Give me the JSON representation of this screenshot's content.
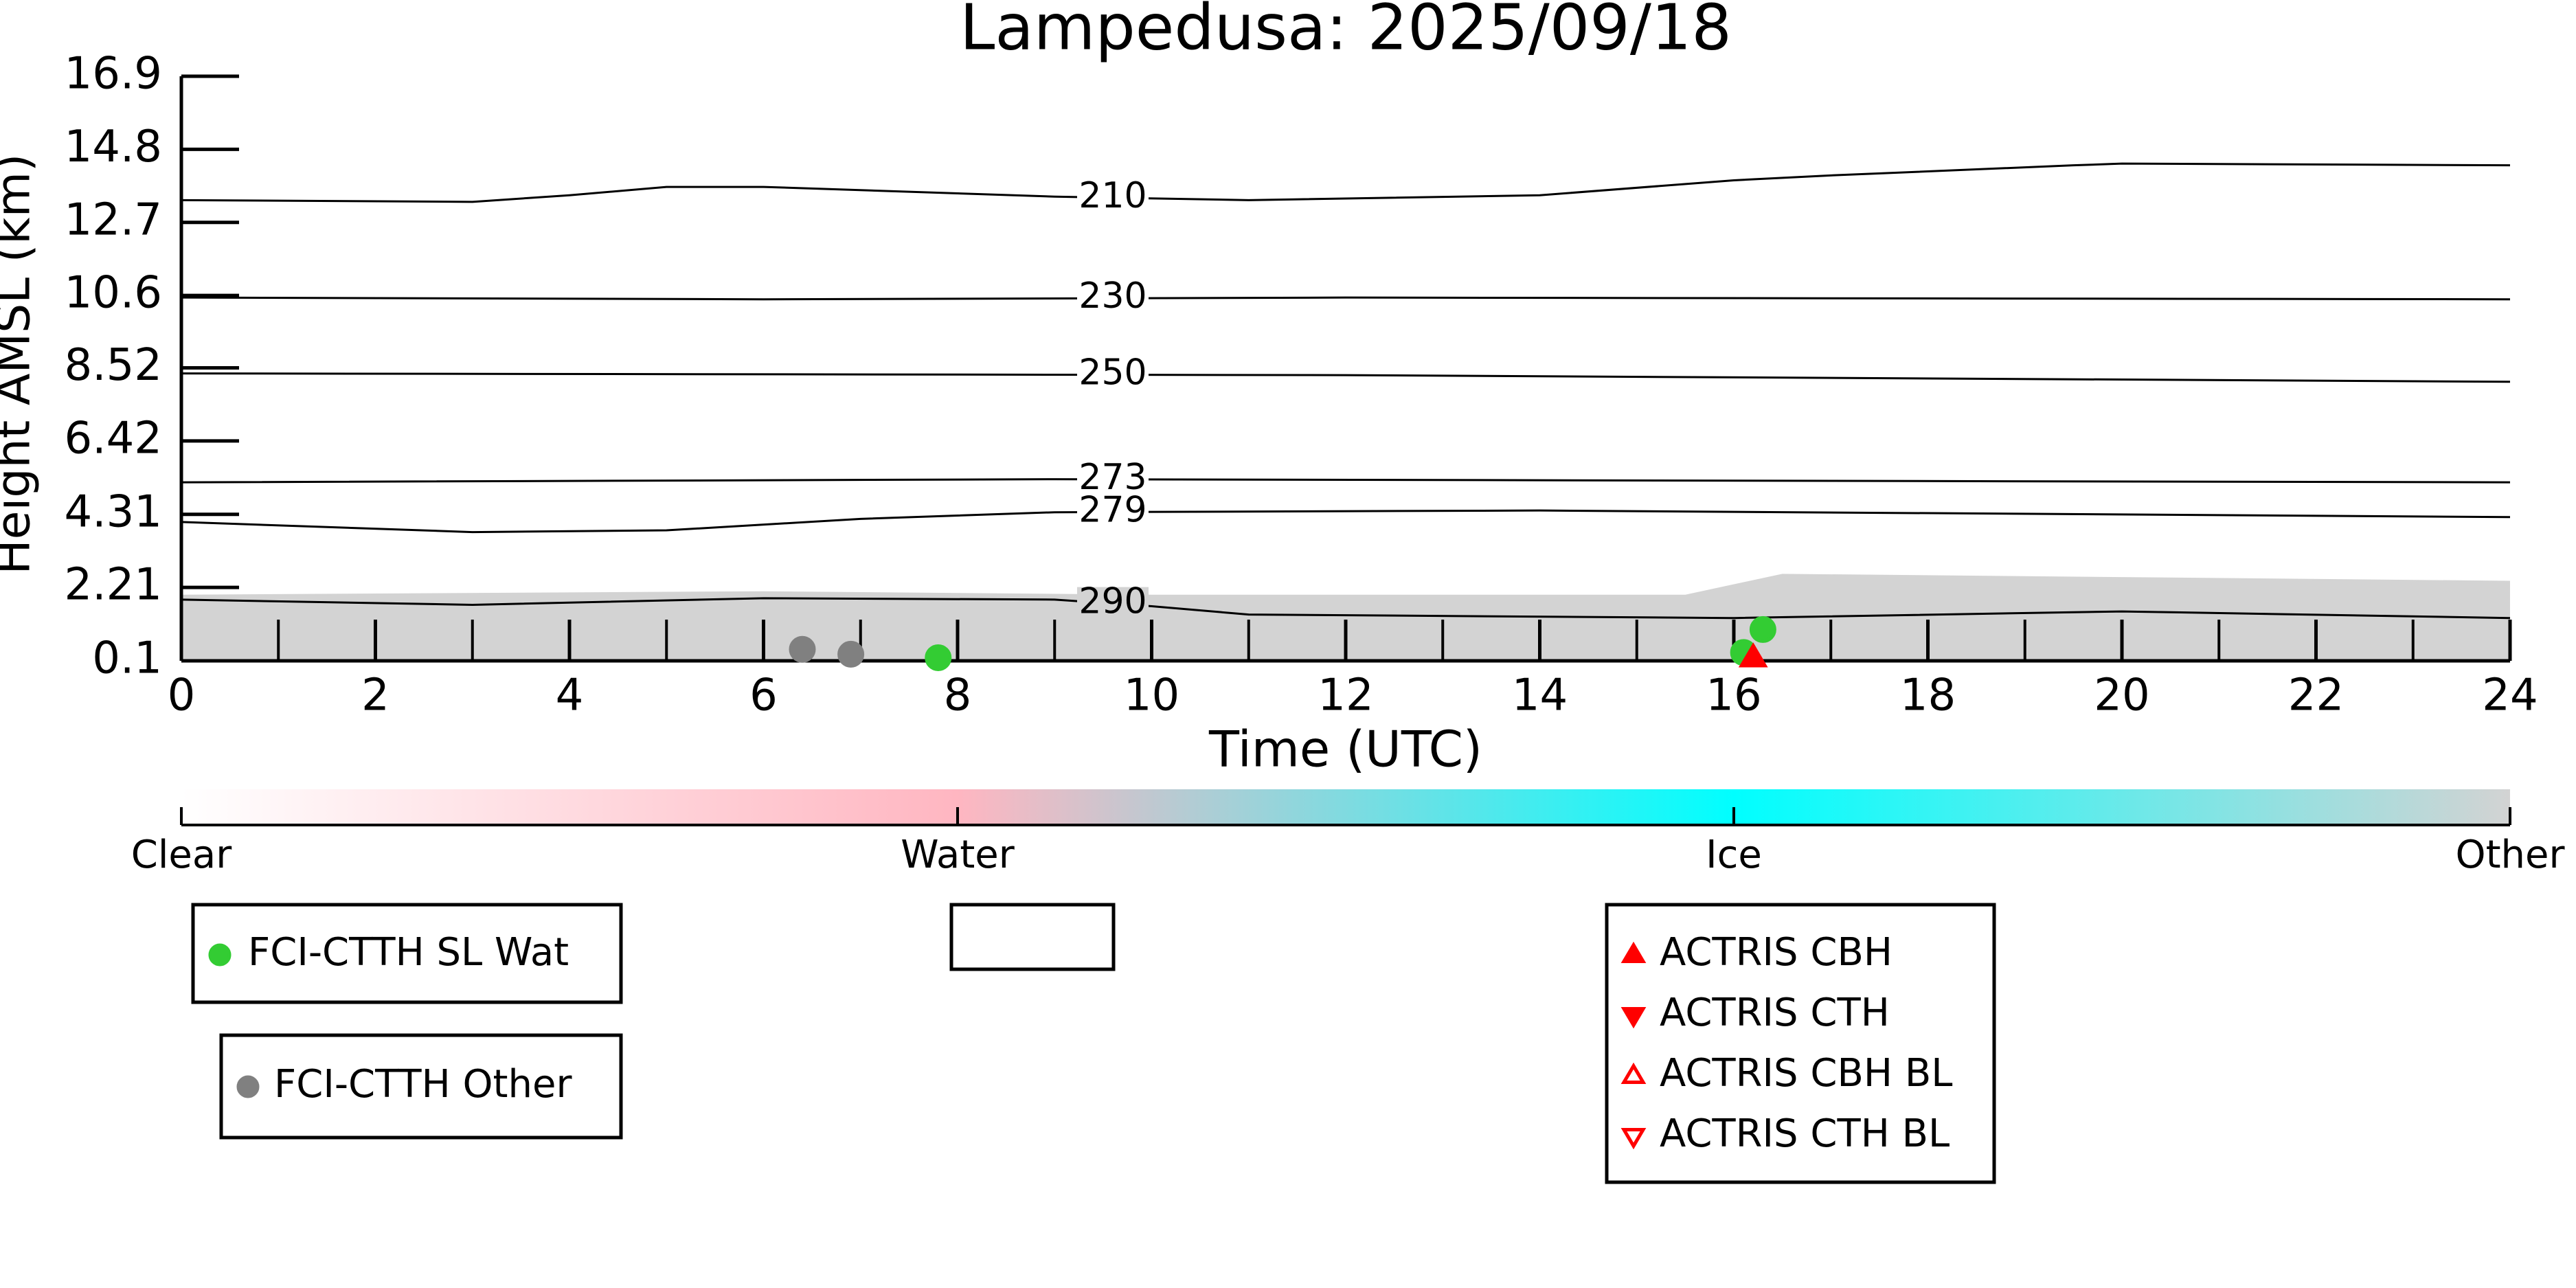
{
  "chart_data": {
    "type": "profile",
    "title": "Lampedusa: 2025/09/18",
    "x_label": "Time (UTC)",
    "y_label": "Height AMSL (km)",
    "xlim": [
      0,
      24
    ],
    "xticks": [
      0,
      2,
      4,
      6,
      8,
      10,
      12,
      14,
      16,
      18,
      20,
      22,
      24
    ],
    "xminorticks": [
      1,
      3,
      5,
      7,
      9,
      11,
      13,
      15,
      17,
      19,
      21,
      23
    ],
    "ylim": [
      0.1,
      16.9
    ],
    "yticks": [
      0.1,
      2.21,
      4.31,
      6.42,
      8.52,
      10.6,
      12.7,
      14.8,
      16.9
    ],
    "cloud_mask": {
      "color": "#d3d3d3",
      "x": [
        0,
        6,
        10,
        15.5,
        16.5,
        24
      ],
      "top": [
        2.0,
        2.1,
        2.0,
        2.0,
        2.6,
        2.4
      ]
    },
    "contours": [
      {
        "level": 210,
        "x": [
          0,
          3,
          4,
          5,
          6,
          9,
          11,
          14,
          16,
          17,
          19.5,
          20,
          24
        ],
        "y": [
          13.34,
          13.29,
          13.48,
          13.72,
          13.72,
          13.44,
          13.34,
          13.48,
          13.91,
          14.05,
          14.34,
          14.39,
          14.34
        ]
      },
      {
        "level": 230,
        "x": [
          0,
          6,
          12,
          24
        ],
        "y": [
          10.54,
          10.49,
          10.54,
          10.49
        ]
      },
      {
        "level": 250,
        "x": [
          0,
          12,
          24
        ],
        "y": [
          8.36,
          8.31,
          8.12
        ]
      },
      {
        "level": 273,
        "x": [
          0,
          9,
          24
        ],
        "y": [
          5.23,
          5.32,
          5.23
        ]
      },
      {
        "level": 279,
        "x": [
          0,
          3,
          5,
          7,
          9,
          14,
          24
        ],
        "y": [
          4.09,
          3.8,
          3.85,
          4.18,
          4.37,
          4.42,
          4.23
        ]
      },
      {
        "level": 290,
        "x": [
          0,
          3,
          6,
          9,
          10,
          11,
          16,
          20,
          24
        ],
        "y": [
          1.86,
          1.71,
          1.9,
          1.86,
          1.67,
          1.43,
          1.33,
          1.52,
          1.33
        ]
      }
    ],
    "series": [
      {
        "name": "FCI-CTTH SL Wat",
        "color": "#33cc33",
        "marker": "circle",
        "x": [
          7.8,
          16.1,
          16.3
        ],
        "y": [
          0.19,
          0.34,
          1.0
        ]
      },
      {
        "name": "FCI-CTTH Other",
        "color": "#808080",
        "marker": "circle",
        "x": [
          6.4,
          6.9
        ],
        "y": [
          0.43,
          0.29
        ]
      },
      {
        "name": "ACTRIS CBH",
        "color": "#ff0000",
        "marker": "triangle-up",
        "x": [
          16.2
        ],
        "y": [
          0.19
        ]
      },
      {
        "name": "ACTRIS CTH",
        "color": "#ff0000",
        "marker": "triangle-down",
        "x": [],
        "y": []
      },
      {
        "name": "ACTRIS CBH BL",
        "color": "#ff0000",
        "marker": "triangle-up-open",
        "x": [],
        "y": []
      },
      {
        "name": "ACTRIS CTH BL",
        "color": "#ff0000",
        "marker": "triangle-down-open",
        "x": [],
        "y": []
      }
    ],
    "colorbar": {
      "labels": [
        "Clear",
        "Water",
        "Ice",
        "Other"
      ],
      "colors": [
        "#ffffff",
        "#ffb6c1",
        "#00ffff",
        "#d3d3d3"
      ]
    }
  }
}
